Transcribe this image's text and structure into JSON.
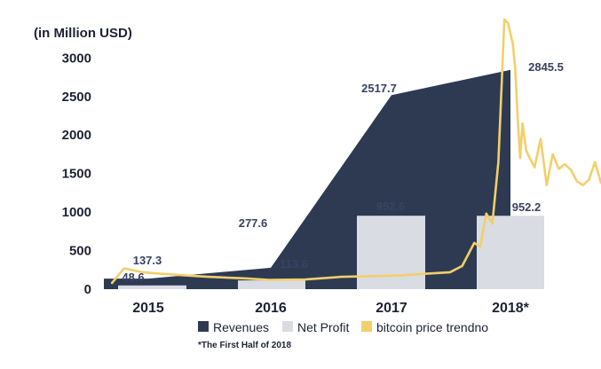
{
  "chart_data": {
    "type": "bar",
    "unit_label": "(in Million USD)",
    "categories": [
      "2015",
      "2016",
      "2017",
      "2018*"
    ],
    "ylim": [
      0,
      3200
    ],
    "yticks": [
      0,
      500,
      1000,
      1500,
      2000,
      2500,
      3000
    ],
    "legend_position": "bottom",
    "grid": false,
    "series": [
      {
        "name": "Revenues",
        "kind": "area",
        "color": "#2d3a52",
        "values": [
          137.3,
          277.6,
          2517.7,
          2845.5
        ],
        "labels": [
          "137.3",
          "277.6",
          "2517.7",
          "2845.5"
        ]
      },
      {
        "name": "Net Profit",
        "kind": "bar",
        "color": "#d9dce3",
        "values": [
          48.6,
          113.6,
          952.6,
          952.2
        ],
        "labels": [
          "48.6",
          "113.6",
          "952.6",
          "952.2"
        ]
      },
      {
        "name": "bitcoin price trendno",
        "kind": "line",
        "color": "#f2cf6b",
        "x": [
          2014.7,
          2014.8,
          2014.95,
          2015.1,
          2015.3,
          2015.5,
          2015.8,
          2016.0,
          2016.3,
          2016.6,
          2016.9,
          2017.1,
          2017.3,
          2017.5,
          2017.6,
          2017.7,
          2017.75,
          2017.8,
          2017.85,
          2017.9,
          2017.95,
          2017.98,
          2018.02,
          2018.04,
          2018.06,
          2018.08,
          2018.1,
          2018.13,
          2018.16,
          2018.2,
          2018.25,
          2018.3,
          2018.35,
          2018.4,
          2018.45,
          2018.5,
          2018.55,
          2018.6,
          2018.65,
          2018.7,
          2018.75
        ],
        "values": [
          80,
          270,
          220,
          200,
          180,
          160,
          140,
          120,
          125,
          160,
          170,
          180,
          200,
          220,
          300,
          600,
          550,
          980,
          850,
          1650,
          3500,
          3450,
          3180,
          2860,
          2200,
          1700,
          2150,
          1800,
          1700,
          1580,
          1950,
          1350,
          1750,
          1560,
          1620,
          1550,
          1400,
          1350,
          1420,
          1650,
          1380
        ]
      }
    ],
    "footnote": "*The First Half of 2018"
  }
}
